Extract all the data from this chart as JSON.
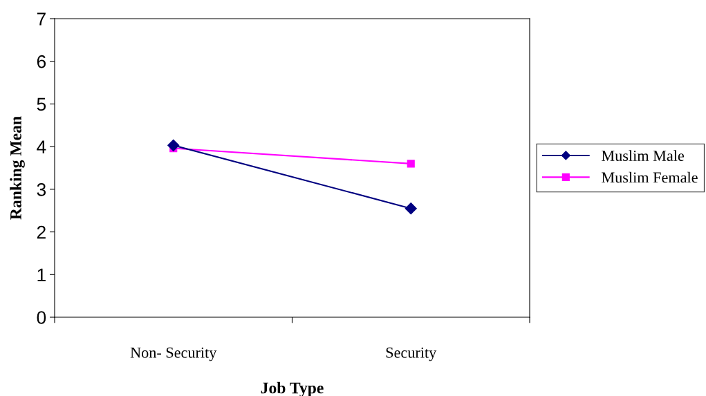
{
  "chart_data": {
    "type": "line",
    "xlabel": "Job Type",
    "ylabel": "Ranking Mean",
    "categories": [
      "Non- Security",
      "Security"
    ],
    "series": [
      {
        "name": "Muslim Male",
        "color": "#000080",
        "marker": "diamond",
        "values": [
          4.03,
          2.55
        ]
      },
      {
        "name": "Muslim Female",
        "color": "#ff00ff",
        "marker": "square",
        "values": [
          3.96,
          3.6
        ]
      }
    ],
    "ylim": [
      0,
      7
    ],
    "yticks": [
      0,
      1,
      2,
      3,
      4,
      5,
      6,
      7
    ],
    "grid": false,
    "legend": "right"
  }
}
